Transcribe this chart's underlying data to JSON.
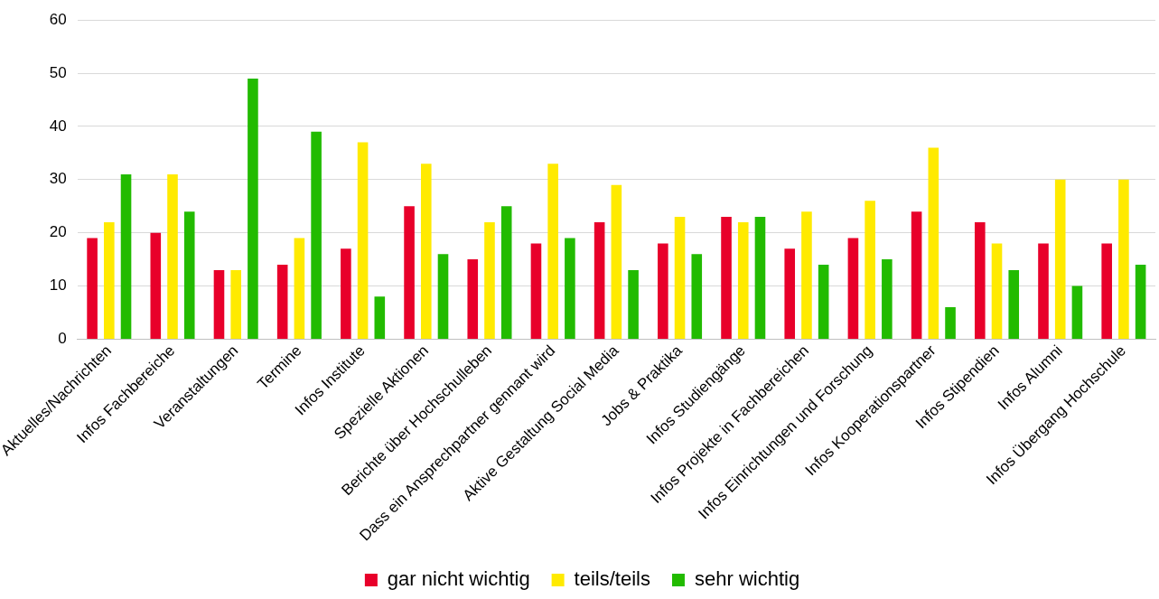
{
  "chart_data": {
    "type": "bar",
    "categories": [
      "Aktuelles/Nachrichten",
      "Infos Fachbereiche",
      "Veranstaltungen",
      "Termine",
      "Infos Institute",
      "Spezielle Aktionen",
      "Berichte über Hochschulleben",
      "Dass ein Ansprechpartner gennant wird",
      "Aktive Gestaltung Social Media",
      "Jobs & Praktika",
      "Infos Studiengänge",
      "Infos Projekte in Fachbereichen",
      "Infos Einrichtungen und Forschung",
      "Infos Kooperationspartner",
      "Infos Stipendien",
      "Infos Alumni",
      "Infos Übergang Hochschule"
    ],
    "series": [
      {
        "name": "gar nicht wichtig",
        "color": "#e8002a",
        "values": [
          19,
          20,
          13,
          14,
          17,
          25,
          15,
          18,
          22,
          18,
          23,
          17,
          19,
          24,
          22,
          18,
          18
        ]
      },
      {
        "name": "teils/teils",
        "color": "#ffea00",
        "values": [
          22,
          31,
          13,
          19,
          37,
          33,
          22,
          33,
          29,
          23,
          22,
          24,
          26,
          36,
          18,
          30,
          30
        ]
      },
      {
        "name": "sehr wichtig",
        "color": "#22bb00",
        "values": [
          31,
          24,
          49,
          39,
          8,
          16,
          25,
          19,
          13,
          16,
          23,
          14,
          15,
          6,
          13,
          10,
          14
        ]
      }
    ],
    "ylim": [
      0,
      60
    ],
    "yticks": [
      0,
      10,
      20,
      30,
      40,
      50,
      60
    ],
    "grid": "y",
    "legend": "bottom"
  }
}
